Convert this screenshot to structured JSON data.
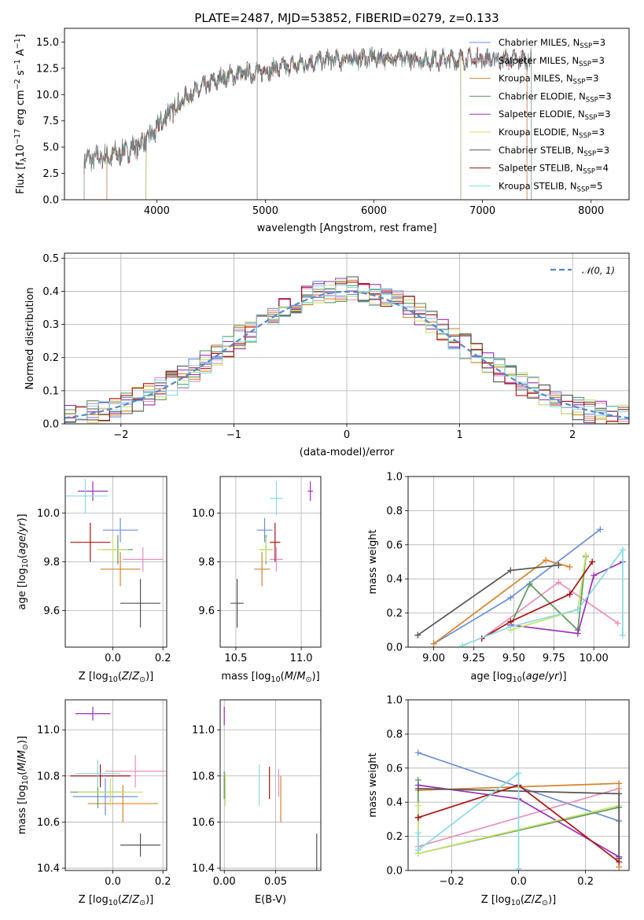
{
  "colors": {
    "chab_miles": "#6a8fd8",
    "salp_miles": "#e88fbd",
    "krou_miles": "#d8832a",
    "chab_elodie": "#5d9a5d",
    "salp_elodie": "#9b30b8",
    "krou_elodie": "#c9e36b",
    "chab_stelib": "#555555",
    "salp_stelib": "#aa1111",
    "krou_stelib": "#86dbe0",
    "normal": "#5588cc"
  },
  "chart_data": [
    {
      "id": "spectrum",
      "type": "line",
      "title": "PLATE=2487, MJD=53852, FIBERID=0279, z=0.133",
      "xlabel": "wavelength [Angstrom, rest frame]",
      "ylabel": "Flux [fλ10⁻¹⁷ erg cm⁻² s⁻¹ A⁻¹]",
      "xlim": [
        3150,
        8350
      ],
      "ylim": [
        0,
        16.3
      ],
      "xticks": [
        4000,
        5000,
        6000,
        7000,
        8000
      ],
      "yticks": [
        0.0,
        2.5,
        5.0,
        7.5,
        10.0,
        12.5,
        15.0
      ],
      "legend_placement": "top-right",
      "legend": [
        {
          "key": "chab_miles",
          "base": "Chabrier MILES, N",
          "sub": "SSP",
          "eq": "=3"
        },
        {
          "key": "salp_miles",
          "base": "Salpeter MILES, N",
          "sub": "SSP",
          "eq": "=3"
        },
        {
          "key": "krou_miles",
          "base": "Kroupa MILES, N",
          "sub": "SSP",
          "eq": "=3"
        },
        {
          "key": "chab_elodie",
          "base": "Chabrier ELODIE, N",
          "sub": "SSP",
          "eq": "=3"
        },
        {
          "key": "salp_elodie",
          "base": "Salpeter ELODIE, N",
          "sub": "SSP",
          "eq": "=3"
        },
        {
          "key": "krou_elodie",
          "base": "Kroupa ELODIE, N",
          "sub": "SSP",
          "eq": "=3"
        },
        {
          "key": "chab_stelib",
          "base": "Chabrier STELIB, N",
          "sub": "SSP",
          "eq": "=3"
        },
        {
          "key": "salp_stelib",
          "base": "Salpeter STELIB, N",
          "sub": "SSP",
          "eq": "=4"
        },
        {
          "key": "krou_stelib",
          "base": "Kroupa STELIB, N",
          "sub": "SSP",
          "eq": "=5"
        }
      ],
      "continuum_x": [
        3350,
        3600,
        3800,
        3950,
        4100,
        4300,
        4600,
        5000,
        5500,
        6000,
        6500,
        7000,
        7450
      ],
      "continuum_y": [
        3.8,
        4.2,
        5.0,
        6.0,
        8.2,
        10.0,
        11.6,
        12.3,
        13.2,
        13.5,
        13.3,
        13.4,
        13.3
      ],
      "data_range": [
        3330,
        7450
      ],
      "model_ranges": {
        "chab_miles": [
          3540,
          7410
        ],
        "salp_miles": [
          3540,
          7410
        ],
        "krou_miles": [
          3540,
          7410
        ],
        "chab_elodie": [
          3900,
          6800
        ],
        "salp_elodie": [
          3900,
          6800
        ],
        "krou_elodie": [
          3900,
          6800
        ],
        "chab_stelib": [
          3330,
          7450
        ],
        "salp_stelib": [
          3330,
          7450
        ],
        "krou_stelib": [
          3330,
          7450
        ]
      }
    },
    {
      "id": "residuals",
      "type": "histogram",
      "xlabel": "(data-model)/error",
      "ylabel": "Normed distribution",
      "xlim": [
        -2.5,
        2.5
      ],
      "ylim": [
        0,
        0.515
      ],
      "xticks": [
        -2,
        -1,
        0,
        1,
        2
      ],
      "yticks": [
        0.0,
        0.1,
        0.2,
        0.3,
        0.4,
        0.5
      ],
      "grid": true,
      "bin_width": 0.1,
      "legend_placement": "top-right",
      "legend": [
        {
          "key": "normal",
          "text": "𝒩(0, 1)"
        }
      ]
    },
    {
      "id": "age_vs_Z",
      "type": "errorbar",
      "xlabel": "Z [log₁₀(Z/Z⊙)]",
      "ylabel": "age  [log₁₀(age/yr)]",
      "xlim": [
        -0.19,
        0.215
      ],
      "ylim": [
        9.45,
        10.15
      ],
      "xticks": [
        0.0,
        0.2
      ],
      "xtick_labels": [
        "0.0",
        "0.2"
      ],
      "yticks": [
        9.6,
        9.8,
        10.0
      ],
      "yticks_labels": [
        "9.6",
        "9.8",
        "10.0"
      ],
      "grid": true,
      "points": [
        {
          "key": "chab_miles",
          "x": 0.03,
          "y": 9.93,
          "xe": 0.07,
          "ye": 0.05
        },
        {
          "key": "salp_miles",
          "x": 0.12,
          "y": 9.81,
          "xe": 0.08,
          "ye": 0.05
        },
        {
          "key": "krou_miles",
          "x": 0.03,
          "y": 9.77,
          "xe": 0.08,
          "ye": 0.07
        },
        {
          "key": "chab_elodie",
          "x": 0.02,
          "y": 9.85,
          "xe": 0.06,
          "ye": 0.06
        },
        {
          "key": "salp_elodie",
          "x": -0.08,
          "y": 10.09,
          "xe": 0.06,
          "ye": 0.04
        },
        {
          "key": "krou_elodie",
          "x": 0.0,
          "y": 9.85,
          "xe": 0.06,
          "ye": 0.05
        },
        {
          "key": "chab_stelib",
          "x": 0.11,
          "y": 9.63,
          "xe": 0.08,
          "ye": 0.1
        },
        {
          "key": "salp_stelib",
          "x": -0.09,
          "y": 9.88,
          "xe": 0.08,
          "ye": 0.08
        },
        {
          "key": "krou_stelib",
          "x": -0.11,
          "y": 10.07,
          "xe": 0.09,
          "ye": 0.07
        }
      ]
    },
    {
      "id": "age_vs_mass",
      "type": "errorbar",
      "xlabel": "mass [log₁₀(M/M⊙)]",
      "ylabel": "",
      "xlim": [
        10.38,
        11.15
      ],
      "ylim": [
        9.45,
        10.15
      ],
      "xticks": [
        10.5,
        11.0
      ],
      "xtick_labels": [
        "10.5",
        "11.0"
      ],
      "yticks": [
        9.6,
        9.8,
        10.0
      ],
      "yticks_labels": [
        "9.6",
        "9.8",
        "10.0"
      ],
      "grid": true,
      "points": [
        {
          "key": "chab_miles",
          "x": 10.72,
          "y": 9.93,
          "xe": 0.06,
          "ye": 0.05
        },
        {
          "key": "salp_miles",
          "x": 10.81,
          "y": 9.81,
          "xe": 0.05,
          "ye": 0.05
        },
        {
          "key": "krou_miles",
          "x": 10.7,
          "y": 9.77,
          "xe": 0.06,
          "ye": 0.07
        },
        {
          "key": "chab_elodie",
          "x": 10.73,
          "y": 9.85,
          "xe": 0.05,
          "ye": 0.06
        },
        {
          "key": "salp_elodie",
          "x": 11.07,
          "y": 10.09,
          "xe": 0.02,
          "ye": 0.04
        },
        {
          "key": "krou_elodie",
          "x": 10.73,
          "y": 9.85,
          "xe": 0.05,
          "ye": 0.05
        },
        {
          "key": "chab_stelib",
          "x": 10.51,
          "y": 9.63,
          "xe": 0.05,
          "ye": 0.1
        },
        {
          "key": "salp_stelib",
          "x": 10.8,
          "y": 9.88,
          "xe": 0.04,
          "ye": 0.08
        },
        {
          "key": "krou_stelib",
          "x": 10.81,
          "y": 10.06,
          "xe": 0.05,
          "ye": 0.07
        }
      ]
    },
    {
      "id": "weight_vs_age",
      "type": "line",
      "xlabel": "age  [log₁₀(age/yr)]",
      "ylabel": "mass weight",
      "xlim": [
        8.84,
        10.22
      ],
      "ylim": [
        0,
        1.0
      ],
      "xticks": [
        9.0,
        9.25,
        9.5,
        9.75,
        10.0
      ],
      "xtick_labels": [
        "9.00",
        "9.25",
        "9.50",
        "9.75",
        "10.00"
      ],
      "yticks": [
        0.0,
        0.2,
        0.4,
        0.6,
        0.8,
        1.0
      ],
      "yticks_labels": [
        "0.0",
        "0.2",
        "0.4",
        "0.6",
        "0.8",
        "1.0"
      ],
      "grid": true,
      "series": [
        {
          "key": "chab_miles",
          "x": [
            9.0,
            9.48,
            10.04
          ],
          "y": [
            0.02,
            0.29,
            0.69
          ]
        },
        {
          "key": "salp_miles",
          "x": [
            9.3,
            9.78,
            10.15
          ],
          "y": [
            0.05,
            0.38,
            0.14
          ]
        },
        {
          "key": "krou_miles",
          "x": [
            9.0,
            9.7,
            9.85
          ],
          "y": [
            0.02,
            0.51,
            0.47
          ]
        },
        {
          "key": "chab_elodie",
          "x": [
            9.48,
            9.6,
            9.9,
            9.95
          ],
          "y": [
            0.13,
            0.37,
            0.1,
            0.53
          ]
        },
        {
          "key": "salp_elodie",
          "x": [
            9.48,
            9.9,
            10.0,
            10.18
          ],
          "y": [
            0.13,
            0.08,
            0.42,
            0.5
          ]
        },
        {
          "key": "krou_elodie",
          "x": [
            9.48,
            9.9,
            9.95
          ],
          "y": [
            0.1,
            0.22,
            0.54
          ]
        },
        {
          "key": "chab_stelib",
          "x": [
            8.9,
            9.48,
            9.78
          ],
          "y": [
            0.07,
            0.45,
            0.48
          ]
        },
        {
          "key": "salp_stelib",
          "x": [
            9.3,
            9.48,
            9.85,
            9.99
          ],
          "y": [
            0.05,
            0.15,
            0.31,
            0.5
          ]
        },
        {
          "key": "krou_stelib",
          "x": [
            9.18,
            9.48,
            9.9,
            10.18,
            10.18
          ],
          "y": [
            0.01,
            0.12,
            0.22,
            0.57,
            0.07
          ]
        }
      ]
    },
    {
      "id": "mass_vs_Z",
      "type": "errorbar",
      "xlabel": "Z [log₁₀(Z/Z⊙)]",
      "ylabel": "mass [log₁₀(M/M⊙)]",
      "xlim": [
        -0.19,
        0.215
      ],
      "ylim": [
        10.39,
        11.13
      ],
      "xticks": [
        0.0,
        0.2
      ],
      "xtick_labels": [
        "0.0",
        "0.2"
      ],
      "yticks": [
        10.4,
        10.6,
        10.8,
        11.0
      ],
      "yticks_labels": [
        "10.4",
        "10.6",
        "10.8",
        "11.0"
      ],
      "grid": true,
      "points": [
        {
          "key": "chab_miles",
          "x": -0.03,
          "y": 10.71,
          "xe": 0.13,
          "ye": 0.08
        },
        {
          "key": "salp_miles",
          "x": 0.09,
          "y": 10.82,
          "xe": 0.12,
          "ye": 0.07
        },
        {
          "key": "krou_miles",
          "x": 0.04,
          "y": 10.68,
          "xe": 0.14,
          "ye": 0.08
        },
        {
          "key": "chab_elodie",
          "x": -0.06,
          "y": 10.73,
          "xe": 0.11,
          "ye": 0.07
        },
        {
          "key": "salp_elodie",
          "x": -0.08,
          "y": 11.07,
          "xe": 0.07,
          "ye": 0.03
        },
        {
          "key": "krou_elodie",
          "x": -0.01,
          "y": 10.73,
          "xe": 0.13,
          "ye": 0.06
        },
        {
          "key": "chab_stelib",
          "x": 0.11,
          "y": 10.5,
          "xe": 0.08,
          "ye": 0.05
        },
        {
          "key": "salp_stelib",
          "x": -0.05,
          "y": 10.8,
          "xe": 0.12,
          "ye": 0.05
        },
        {
          "key": "krou_stelib",
          "x": -0.06,
          "y": 10.81,
          "xe": 0.09,
          "ye": 0.06
        }
      ]
    },
    {
      "id": "mass_vs_EBV",
      "type": "errorbar",
      "xlabel": "E(B-V)",
      "ylabel": "",
      "xlim": [
        -0.004,
        0.094
      ],
      "ylim": [
        10.39,
        11.13
      ],
      "xticks": [
        0.0,
        0.05
      ],
      "xtick_labels": [
        "0.00",
        "0.05"
      ],
      "yticks": [
        10.4,
        10.6,
        10.8,
        11.0
      ],
      "yticks_labels": [
        "10.4",
        "10.6",
        "10.8",
        "11.0"
      ],
      "grid": true,
      "points": [
        {
          "key": "chab_miles",
          "x": 0.0,
          "y": 10.75,
          "xe": 0.0,
          "ye": 0.05
        },
        {
          "key": "salp_miles",
          "x": 0.053,
          "y": 10.77,
          "xe": 0.0,
          "ye": 0.06
        },
        {
          "key": "krou_miles",
          "x": 0.055,
          "y": 10.7,
          "xe": 0.0,
          "ye": 0.1
        },
        {
          "key": "chab_elodie",
          "x": 0.0,
          "y": 10.76,
          "xe": 0.0,
          "ye": 0.06
        },
        {
          "key": "salp_elodie",
          "x": 0.0,
          "y": 11.06,
          "xe": 0.0,
          "ye": 0.04
        },
        {
          "key": "krou_elodie",
          "x": 0.001,
          "y": 10.74,
          "xe": 0.0,
          "ye": 0.07
        },
        {
          "key": "chab_stelib",
          "x": 0.09,
          "y": 10.47,
          "xe": 0.0,
          "ye": 0.08
        },
        {
          "key": "salp_stelib",
          "x": 0.044,
          "y": 10.77,
          "xe": 0.0,
          "ye": 0.07
        },
        {
          "key": "krou_stelib",
          "x": 0.034,
          "y": 10.76,
          "xe": 0.0,
          "ye": 0.09
        }
      ]
    },
    {
      "id": "weight_vs_Z",
      "type": "line",
      "xlabel": "Z [log₁₀(Z/Z⊙)]",
      "ylabel": "mass weight",
      "xlim": [
        -0.33,
        0.33
      ],
      "ylim": [
        0,
        1.0
      ],
      "xticks": [
        -0.2,
        0.0,
        0.2
      ],
      "xtick_labels": [
        "−0.2",
        "0.0",
        "0.2"
      ],
      "yticks": [
        0.0,
        0.2,
        0.4,
        0.6,
        0.8,
        1.0
      ],
      "yticks_labels": [
        "0.0",
        "0.2",
        "0.4",
        "0.6",
        "0.8",
        "1.0"
      ],
      "grid": true,
      "series": [
        {
          "key": "chab_miles",
          "x": [
            -0.3,
            0.3
          ],
          "y": [
            0.69,
            0.29
          ]
        },
        {
          "key": "salp_miles",
          "x": [
            -0.3,
            0.3
          ],
          "y": [
            0.14,
            0.48
          ]
        },
        {
          "key": "krou_miles",
          "x": [
            -0.3,
            0.3,
            0.3
          ],
          "y": [
            0.47,
            0.51,
            0.02
          ]
        },
        {
          "key": "chab_elodie",
          "x": [
            -0.3,
            -0.3,
            0.3
          ],
          "y": [
            0.53,
            0.1,
            0.37
          ]
        },
        {
          "key": "salp_elodie",
          "x": [
            -0.3,
            0.0,
            0.3,
            0.3
          ],
          "y": [
            0.5,
            0.42,
            0.08,
            0.08
          ]
        },
        {
          "key": "krou_elodie",
          "x": [
            -0.3,
            -0.3,
            0.3
          ],
          "y": [
            0.38,
            0.1,
            0.38
          ]
        },
        {
          "key": "chab_stelib",
          "x": [
            -0.3,
            0.3,
            0.3
          ],
          "y": [
            0.48,
            0.45,
            0.07
          ]
        },
        {
          "key": "salp_stelib",
          "x": [
            -0.3,
            -0.3,
            0.0,
            0.3
          ],
          "y": [
            0.31,
            0.31,
            0.5,
            0.05
          ]
        },
        {
          "key": "krou_stelib",
          "x": [
            -0.3,
            -0.3,
            0.0,
            0.0
          ],
          "y": [
            0.22,
            0.12,
            0.57,
            0.01
          ]
        }
      ]
    }
  ]
}
